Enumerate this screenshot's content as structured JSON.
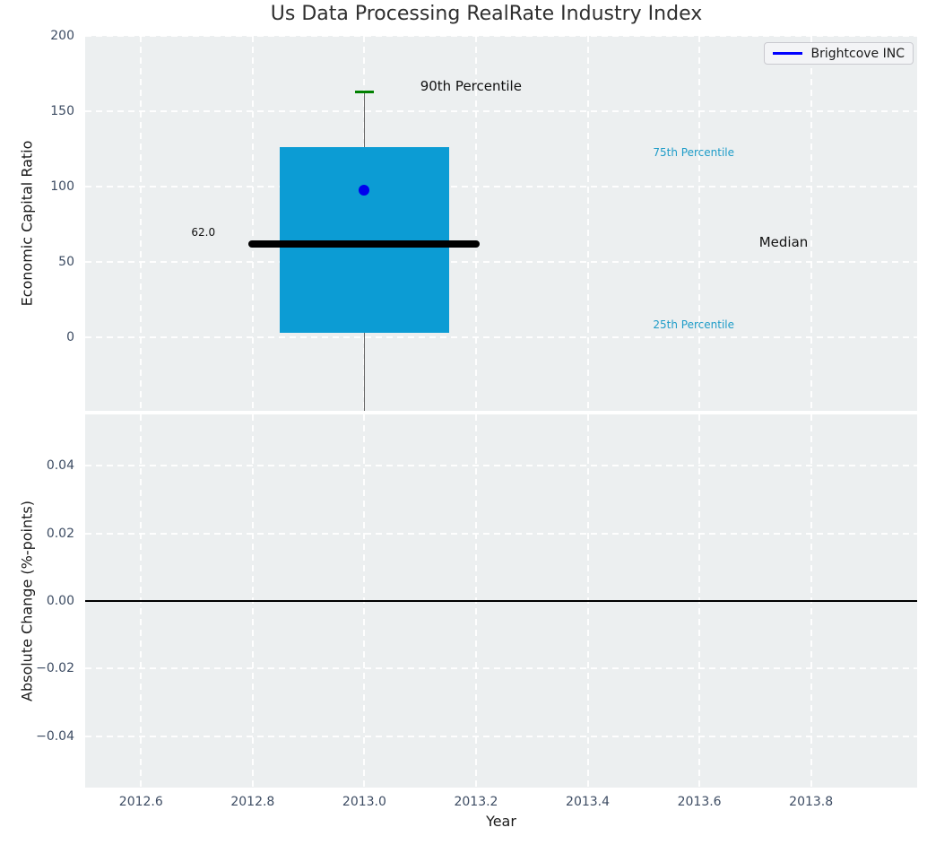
{
  "title": "Us Data Processing RealRate Industry Index",
  "legend": {
    "items": [
      {
        "label": "Brightcove INC",
        "color": "#0000ff"
      }
    ]
  },
  "colors": {
    "background": "#eceff0",
    "grid": "#ffffff",
    "box_fill": "#0c9cd4",
    "median_line": "#000000",
    "whisker": "#666666",
    "cap": "#008000",
    "marker": "#0000ee",
    "zero_line": "#000000",
    "tick_label": "#3d4c63",
    "axis_label": "#1a1a1a",
    "percentile_label": "#1e9cc8",
    "title": "#2f2f2f"
  },
  "chart_data": {
    "type": "boxplot",
    "title": "Us Data Processing RealRate Industry Index",
    "xlabel": "Year",
    "grid": "white dashed on light gray panels",
    "legend_position": "upper right",
    "x": {
      "lim": [
        2012.5,
        2013.99
      ],
      "ticks": [
        {
          "value": 2012.6,
          "label": "2012.6"
        },
        {
          "value": 2012.8,
          "label": "2012.8"
        },
        {
          "value": 2013.0,
          "label": "2013.0"
        },
        {
          "value": 2013.2,
          "label": "2013.2"
        },
        {
          "value": 2013.4,
          "label": "2013.4"
        },
        {
          "value": 2013.6,
          "label": "2013.6"
        },
        {
          "value": 2013.8,
          "label": "2013.8"
        }
      ]
    },
    "top_panel": {
      "ylabel": "Economic Capital Ratio",
      "ylim": [
        -48.5,
        200
      ],
      "yticks": [
        {
          "value": 0,
          "label": "0"
        },
        {
          "value": 50,
          "label": "50"
        },
        {
          "value": 100,
          "label": "100"
        },
        {
          "value": 150,
          "label": "150"
        },
        {
          "value": 200,
          "label": "200"
        }
      ],
      "box": {
        "x": 2013.0,
        "box_halfwidth": 0.152,
        "q1": 3.5,
        "q3": 126.0,
        "median": 62.0,
        "p90": 163.0,
        "whisker_low": -48.5,
        "median_halfwidth": 0.207,
        "cap_halfwidth": 0.017
      },
      "marker": {
        "x": 2013.0,
        "y": 98,
        "series": "Brightcove INC"
      },
      "annotations": [
        {
          "text": "62.0",
          "x": 2012.733,
          "y": 70,
          "align": "right",
          "size": 12,
          "color": "#111111"
        },
        {
          "text": "90th Percentile",
          "x": 2013.1,
          "y": 167,
          "align": "left",
          "size": 15,
          "color": "#111111"
        },
        {
          "text": "75th Percentile",
          "x": 2013.517,
          "y": 123,
          "align": "left",
          "size": 12,
          "color": "#1e9cc8"
        },
        {
          "text": "Median",
          "x": 2013.707,
          "y": 63,
          "align": "left",
          "size": 15,
          "color": "#111111"
        },
        {
          "text": "25th Percentile",
          "x": 2013.517,
          "y": 8.5,
          "align": "left",
          "size": 12,
          "color": "#1e9cc8"
        }
      ]
    },
    "bottom_panel": {
      "ylabel": "Absolute Change (%-points)",
      "ylim": [
        -0.0551,
        0.0551
      ],
      "yticks": [
        {
          "value": 0.04,
          "label": "0.04"
        },
        {
          "value": 0.02,
          "label": "0.02"
        },
        {
          "value": 0.0,
          "label": "0.00"
        },
        {
          "value": -0.02,
          "label": "−0.02"
        },
        {
          "value": -0.04,
          "label": "−0.04"
        }
      ],
      "zero_line": 0.0,
      "series": []
    }
  }
}
